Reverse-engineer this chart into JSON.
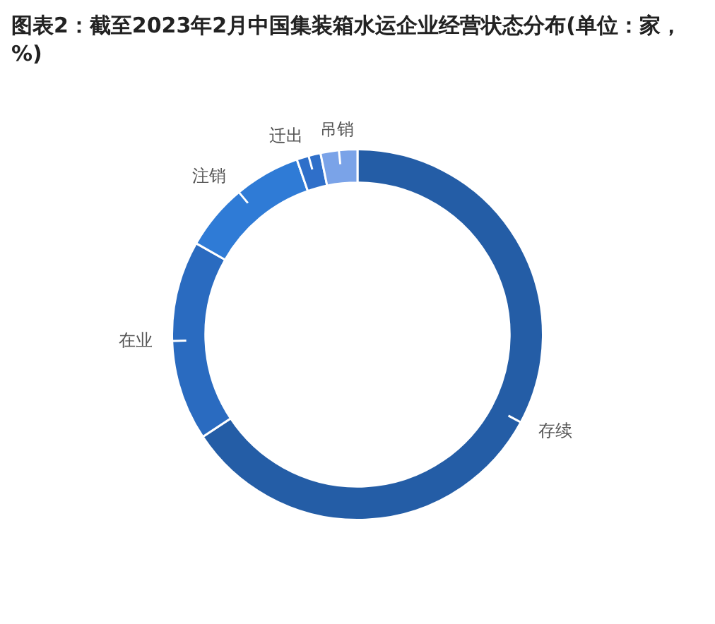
{
  "chart_data": {
    "type": "donut",
    "title": "图表2：截至2023年2月中国集装箱水运企业经营状态分布(单位：家，%)",
    "categories": [
      "存续",
      "在业",
      "注销",
      "迁出",
      "吊销"
    ],
    "values": [
      65.7,
      17.5,
      11.5,
      2.1,
      3.2
    ],
    "colors": [
      "#245da6",
      "#2a6bc0",
      "#2f7bd6",
      "#2f6fc9",
      "#7aa3e8"
    ],
    "legend": false
  }
}
